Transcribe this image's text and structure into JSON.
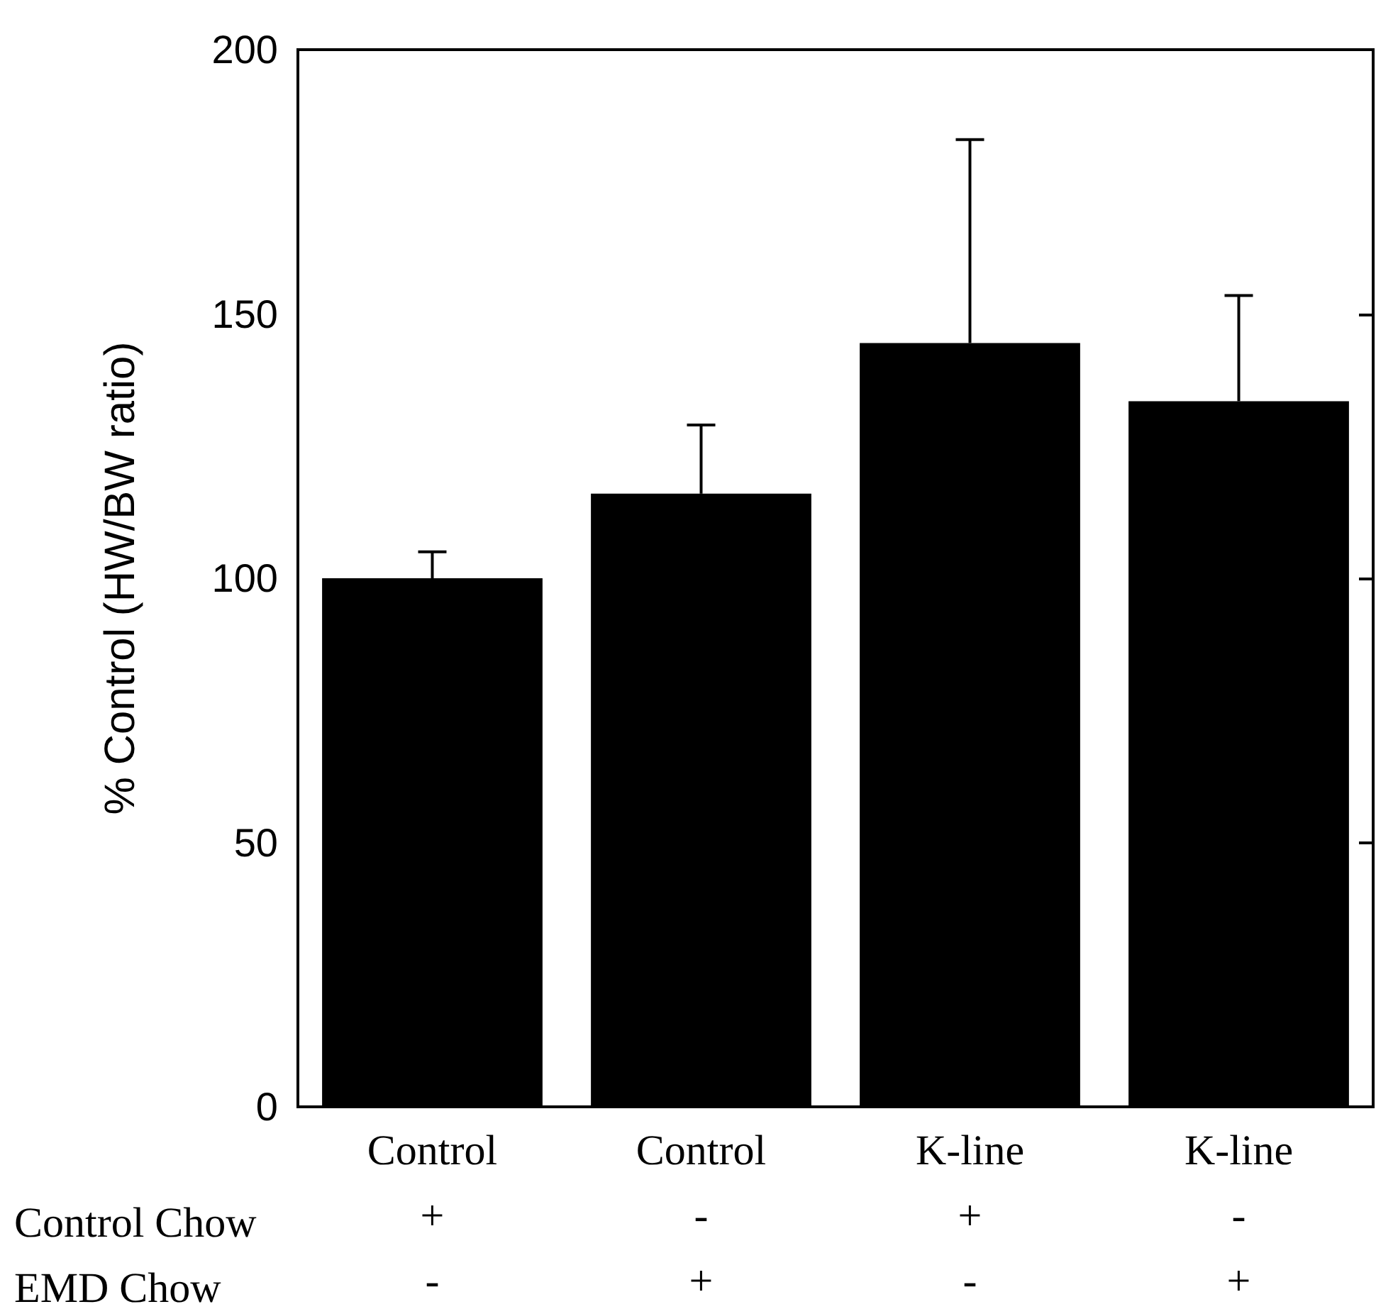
{
  "chart_data": {
    "type": "bar",
    "ylabel": "% Control (HW/BW ratio)",
    "categories": [
      "Control\n+\n-",
      "Control\n-\n+",
      "K-line\n+\n-",
      "K-line\n-\n+"
    ],
    "values": [
      100,
      116,
      144.5,
      133.5
    ],
    "errors": [
      [
        100,
        105
      ],
      [
        116,
        129
      ],
      [
        144.5,
        183
      ],
      [
        133.5,
        153.5
      ]
    ],
    "color": "#000000",
    "ylim": [
      0,
      200
    ],
    "yticks": [
      0,
      50,
      100,
      150,
      200
    ],
    "grid": false,
    "annotations": [
      "Control Chow",
      "EMD Chow"
    ]
  }
}
